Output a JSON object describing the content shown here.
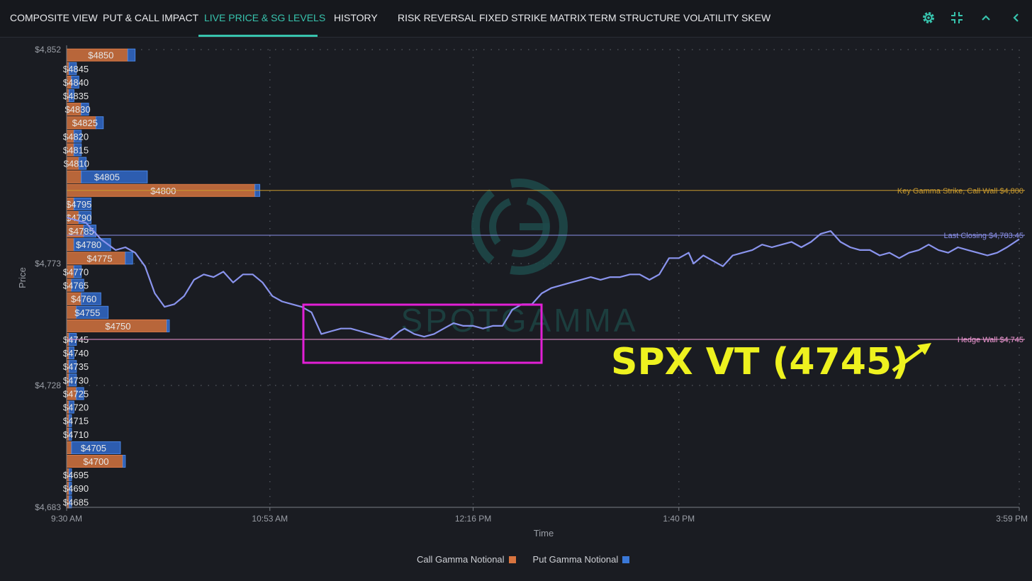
{
  "nav": {
    "tabs": [
      {
        "label": "COMPOSITE VIEW",
        "active": false
      },
      {
        "label": "PUT & CALL IMPACT",
        "active": false
      },
      {
        "label": "LIVE PRICE & SG LEVELS",
        "active": true
      },
      {
        "label": "HISTORY",
        "active": false
      },
      {
        "label": "RISK REVERSAL",
        "active": false
      },
      {
        "label": "FIXED STRIKE MATRIX",
        "active": false
      },
      {
        "label": "TERM STRUCTURE",
        "active": false
      },
      {
        "label": "VOLATILITY SKEW",
        "active": false
      }
    ],
    "icons": [
      "gear-icon",
      "collapse-icon",
      "chevron-up-icon",
      "chevron-left-icon"
    ],
    "accent": "#37c3ad"
  },
  "watermark": "SPOTGAMMA",
  "annotation": {
    "text": "SPX VT (4745)",
    "color": "#eef21f",
    "box_color": "#e21fd6"
  },
  "legend": {
    "call_label": "Call Gamma Notional",
    "put_label": "Put Gamma Notional",
    "call_color": "#d9743f",
    "put_color": "#3a78d8"
  },
  "chart_data": {
    "type": "line",
    "xlabel": "Time",
    "ylabel": "Price",
    "x_ticks": [
      "9:30 AM",
      "10:53 AM",
      "12:16 PM",
      "1:40 PM",
      "3:59 PM"
    ],
    "x_tick_minutes": [
      570,
      653,
      736,
      820,
      959
    ],
    "x_range_minutes": [
      570,
      959
    ],
    "y_ticks": [
      "$4,852",
      "$4,773",
      "$4,728",
      "$4,683"
    ],
    "y_tick_values": [
      4852,
      4773,
      4728,
      4683
    ],
    "ylim": [
      4683,
      4852
    ],
    "grid": true,
    "levels": [
      {
        "label": "Key Gamma Strike, Call Wall $4,800",
        "value": 4800,
        "color": "#c99a2e"
      },
      {
        "label": "Last Closing $4,783.45",
        "value": 4783.45,
        "color": "#8a8fe8"
      },
      {
        "label": "Hedge Wall $4,745",
        "value": 4745,
        "color": "#f29ad6"
      }
    ],
    "gamma_bars": [
      {
        "strike": 4850,
        "label": "$4850",
        "call": 25,
        "put": 3
      },
      {
        "strike": 4845,
        "label": "$4845",
        "call": 1,
        "put": 3
      },
      {
        "strike": 4840,
        "label": "$4840",
        "call": 2,
        "put": 3
      },
      {
        "strike": 4835,
        "label": "$4835",
        "call": 1,
        "put": 2
      },
      {
        "strike": 4830,
        "label": "$4830",
        "call": 6,
        "put": 3
      },
      {
        "strike": 4825,
        "label": "$4825",
        "call": 12,
        "put": 3
      },
      {
        "strike": 4820,
        "label": "$4820",
        "call": 3,
        "put": 3
      },
      {
        "strike": 4815,
        "label": "$4815",
        "call": 3,
        "put": 3
      },
      {
        "strike": 4810,
        "label": "$4810",
        "call": 5,
        "put": 3
      },
      {
        "strike": 4805,
        "label": "$4805",
        "call": 6,
        "put": 27
      },
      {
        "strike": 4800,
        "label": "$4800",
        "call": 77,
        "put": 2
      },
      {
        "strike": 4795,
        "label": "$4795",
        "call": 3,
        "put": 7
      },
      {
        "strike": 4790,
        "label": "$4790",
        "call": 5,
        "put": 5
      },
      {
        "strike": 4785,
        "label": "$4785",
        "call": 7,
        "put": 5
      },
      {
        "strike": 4780,
        "label": "$4780",
        "call": 3,
        "put": 15
      },
      {
        "strike": 4775,
        "label": "$4775",
        "call": 24,
        "put": 3
      },
      {
        "strike": 4770,
        "label": "$4770",
        "call": 3,
        "put": 3
      },
      {
        "strike": 4765,
        "label": "$4765",
        "call": 2,
        "put": 5
      },
      {
        "strike": 4760,
        "label": "$4760",
        "call": 6,
        "put": 8
      },
      {
        "strike": 4755,
        "label": "$4755",
        "call": 4,
        "put": 13
      },
      {
        "strike": 4750,
        "label": "$4750",
        "call": 41,
        "put": 1
      },
      {
        "strike": 4745,
        "label": "$4745",
        "call": 1,
        "put": 3
      },
      {
        "strike": 4740,
        "label": "$4740",
        "call": 1,
        "put": 2
      },
      {
        "strike": 4735,
        "label": "$4735",
        "call": 1,
        "put": 3
      },
      {
        "strike": 4730,
        "label": "$4730",
        "call": 1,
        "put": 3
      },
      {
        "strike": 4725,
        "label": "$4725",
        "call": 4,
        "put": 3
      },
      {
        "strike": 4720,
        "label": "$4720",
        "call": 1,
        "put": 2
      },
      {
        "strike": 4715,
        "label": "$4715",
        "call": 1,
        "put": 1
      },
      {
        "strike": 4710,
        "label": "$4710",
        "call": 1,
        "put": 1
      },
      {
        "strike": 4705,
        "label": "$4705",
        "call": 2,
        "put": 20
      },
      {
        "strike": 4700,
        "label": "$4700",
        "call": 23,
        "put": 1
      },
      {
        "strike": 4695,
        "label": "$4695",
        "call": 1,
        "put": 1
      },
      {
        "strike": 4690,
        "label": "$4690",
        "call": 1,
        "put": 1
      },
      {
        "strike": 4685,
        "label": "$4685",
        "call": 1,
        "put": 1
      }
    ],
    "series": [
      {
        "color": "#8a94ee",
        "points": [
          [
            570,
            4790
          ],
          [
            578,
            4788
          ],
          [
            584,
            4782
          ],
          [
            590,
            4778
          ],
          [
            594,
            4779
          ],
          [
            598,
            4777
          ],
          [
            602,
            4772
          ],
          [
            606,
            4762
          ],
          [
            610,
            4757
          ],
          [
            614,
            4758
          ],
          [
            618,
            4761
          ],
          [
            622,
            4767
          ],
          [
            626,
            4769
          ],
          [
            630,
            4768
          ],
          [
            634,
            4770
          ],
          [
            638,
            4766
          ],
          [
            642,
            4769
          ],
          [
            646,
            4769
          ],
          [
            650,
            4766
          ],
          [
            654,
            4761
          ],
          [
            658,
            4759
          ],
          [
            662,
            4758
          ],
          [
            666,
            4757
          ],
          [
            670,
            4755
          ],
          [
            674,
            4747
          ],
          [
            678,
            4748
          ],
          [
            682,
            4749
          ],
          [
            686,
            4749
          ],
          [
            690,
            4748
          ],
          [
            694,
            4747
          ],
          [
            698,
            4746
          ],
          [
            702,
            4745
          ],
          [
            706,
            4748
          ],
          [
            708,
            4749
          ],
          [
            712,
            4747
          ],
          [
            716,
            4746
          ],
          [
            720,
            4747
          ],
          [
            724,
            4749
          ],
          [
            728,
            4751
          ],
          [
            732,
            4750
          ],
          [
            736,
            4750
          ],
          [
            740,
            4749
          ],
          [
            744,
            4750
          ],
          [
            748,
            4750
          ],
          [
            752,
            4756
          ],
          [
            756,
            4758
          ],
          [
            760,
            4758
          ],
          [
            764,
            4762
          ],
          [
            768,
            4764
          ],
          [
            772,
            4765
          ],
          [
            776,
            4766
          ],
          [
            780,
            4767
          ],
          [
            784,
            4768
          ],
          [
            788,
            4767
          ],
          [
            792,
            4768
          ],
          [
            796,
            4768
          ],
          [
            800,
            4769
          ],
          [
            804,
            4769
          ],
          [
            808,
            4767
          ],
          [
            812,
            4769
          ],
          [
            816,
            4775
          ],
          [
            820,
            4775
          ],
          [
            824,
            4777
          ],
          [
            826,
            4773
          ],
          [
            830,
            4776
          ],
          [
            834,
            4774
          ],
          [
            838,
            4772
          ],
          [
            842,
            4776
          ],
          [
            846,
            4777
          ],
          [
            850,
            4778
          ],
          [
            854,
            4780
          ],
          [
            858,
            4779
          ],
          [
            862,
            4780
          ],
          [
            866,
            4781
          ],
          [
            870,
            4779
          ],
          [
            874,
            4781
          ],
          [
            878,
            4784
          ],
          [
            882,
            4785
          ],
          [
            886,
            4781
          ],
          [
            890,
            4779
          ],
          [
            894,
            4778
          ],
          [
            898,
            4778
          ],
          [
            902,
            4776
          ],
          [
            906,
            4777
          ],
          [
            910,
            4775
          ],
          [
            914,
            4777
          ],
          [
            918,
            4778
          ],
          [
            922,
            4780
          ],
          [
            926,
            4778
          ],
          [
            930,
            4777
          ],
          [
            934,
            4779
          ],
          [
            938,
            4778
          ],
          [
            942,
            4777
          ],
          [
            946,
            4776
          ],
          [
            950,
            4777
          ],
          [
            954,
            4779
          ],
          [
            959,
            4782
          ]
        ]
      }
    ]
  }
}
